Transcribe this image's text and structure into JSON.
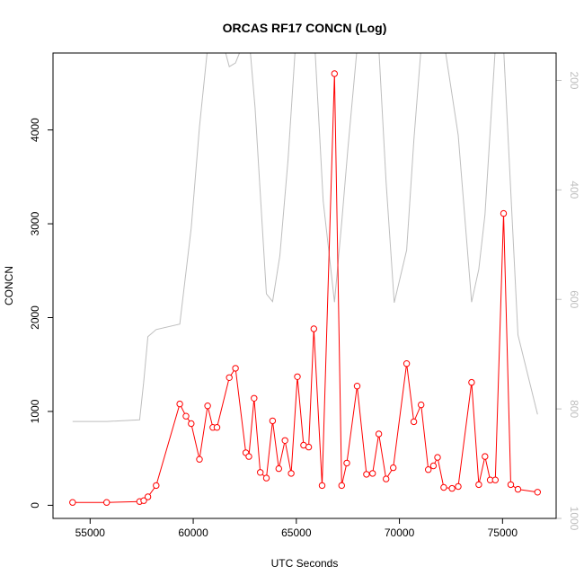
{
  "chart_data": {
    "type": "line",
    "title": "ORCAS RF17 CONCN (Log)",
    "xlabel": "UTC Seconds",
    "ylabel": "CONCN",
    "xlim": [
      53200,
      77600
    ],
    "ylim": [
      -140,
      4820
    ],
    "y2lim": [
      150,
      1000
    ],
    "y2_reversed": true,
    "x_ticks": [
      55000,
      60000,
      65000,
      70000,
      75000
    ],
    "y_ticks": [
      0,
      1000,
      2000,
      3000,
      4000
    ],
    "y2_ticks": [
      200,
      400,
      600,
      800,
      1000
    ],
    "grid": false,
    "colors": {
      "concn": "#ff0000",
      "secondary": "#bebebe",
      "frame": "#000000"
    },
    "series": [
      {
        "axis": "left",
        "marker": "open-circle",
        "color": "#ff0000",
        "x": [
          54150,
          55800,
          57400,
          57600,
          57800,
          58200,
          59350,
          59650,
          59900,
          60300,
          60700,
          60950,
          61150,
          61750,
          62050,
          62550,
          62700,
          62950,
          63250,
          63550,
          63850,
          64150,
          64450,
          64750,
          65050,
          65350,
          65600,
          65850,
          66250,
          66850,
          67200,
          67450,
          67950,
          68400,
          68700,
          69000,
          69350,
          69700,
          70350,
          70700,
          71050,
          71400,
          71650,
          71850,
          72150,
          72550,
          72850,
          73500,
          73850,
          74150,
          74400,
          74650,
          75050,
          75400,
          75750,
          76700
        ],
        "y": [
          30,
          30,
          40,
          50,
          90,
          210,
          1080,
          950,
          870,
          490,
          1060,
          830,
          830,
          1360,
          1460,
          560,
          520,
          1140,
          350,
          290,
          900,
          390,
          690,
          340,
          1370,
          640,
          620,
          1880,
          210,
          4600,
          210,
          450,
          1270,
          330,
          340,
          760,
          280,
          400,
          1510,
          890,
          1070,
          380,
          420,
          510,
          190,
          180,
          200,
          1310,
          220,
          520,
          270,
          270,
          3110,
          220,
          170,
          140
        ]
      },
      {
        "axis": "right",
        "marker": "none",
        "color": "#bebebe",
        "x": [
          54150,
          55800,
          57400,
          57600,
          57800,
          58200,
          59350,
          59900,
          60300,
          60700,
          61100,
          61500,
          61750,
          62050,
          62350,
          62750,
          63000,
          63550,
          63850,
          64200,
          64600,
          64950,
          65300,
          65600,
          65900,
          66300,
          66850,
          67200,
          67500,
          67950,
          68350,
          68700,
          69000,
          69350,
          69750,
          70350,
          70700,
          71050,
          71400,
          71850,
          72200,
          72850,
          73500,
          73850,
          74150,
          74650,
          75050,
          75750,
          76700
        ],
        "y": [
          823,
          823,
          820,
          750,
          668,
          655,
          645,
          470,
          285,
          140,
          140,
          140,
          175,
          168,
          140,
          140,
          250,
          590,
          604,
          520,
          345,
          140,
          140,
          140,
          140,
          420,
          605,
          460,
          325,
          140,
          140,
          140,
          140,
          385,
          606,
          510,
          310,
          140,
          140,
          140,
          140,
          300,
          605,
          545,
          445,
          140,
          140,
          665,
          810
        ]
      }
    ]
  }
}
